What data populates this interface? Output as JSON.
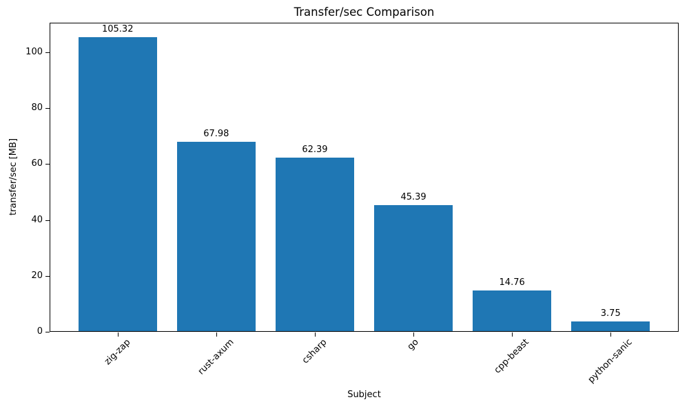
{
  "chart_data": {
    "type": "bar",
    "title": "Transfer/sec Comparison",
    "xlabel": "Subject",
    "ylabel": "transfer/sec [MB]",
    "categories": [
      "zig-zap",
      "rust-axum",
      "csharp",
      "go",
      "cpp-beast",
      "python-sanic"
    ],
    "values": [
      105.32,
      67.98,
      62.39,
      45.39,
      14.76,
      3.75
    ],
    "value_labels": [
      "105.32",
      "67.98",
      "62.39",
      "45.39",
      "14.76",
      "3.75"
    ],
    "yticks": [
      0,
      20,
      40,
      60,
      80,
      100
    ],
    "ytick_labels": [
      "0",
      "20",
      "40",
      "60",
      "80",
      "100"
    ],
    "ylim": [
      0,
      110.59
    ],
    "bar_color": "#1f77b4",
    "bar_width_fraction": 0.8,
    "xtick_rotation": 45,
    "grid": false,
    "legend": null,
    "frame_color": "#000000",
    "background_color": "#ffffff"
  }
}
